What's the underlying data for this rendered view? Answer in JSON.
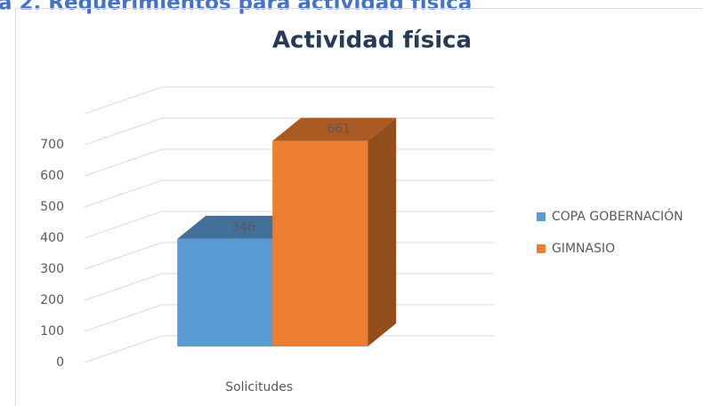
{
  "header": {
    "text": "a 2. Requerimientos para actividad física"
  },
  "chart_data": {
    "type": "bar3d",
    "title": "Actividad física",
    "categories": [
      "Solicitudes"
    ],
    "series": [
      {
        "name": "COPA GOBERNACIÓN",
        "color": "#5b9bd5",
        "values": [
          346
        ]
      },
      {
        "name": "GIMNASIO",
        "color": "#ed7d31",
        "values": [
          661
        ]
      }
    ],
    "ylim": [
      0,
      800
    ],
    "yticks": [
      0,
      100,
      200,
      300,
      400,
      500,
      600,
      700
    ],
    "grid": true,
    "legend": "right",
    "data_labels": true
  }
}
